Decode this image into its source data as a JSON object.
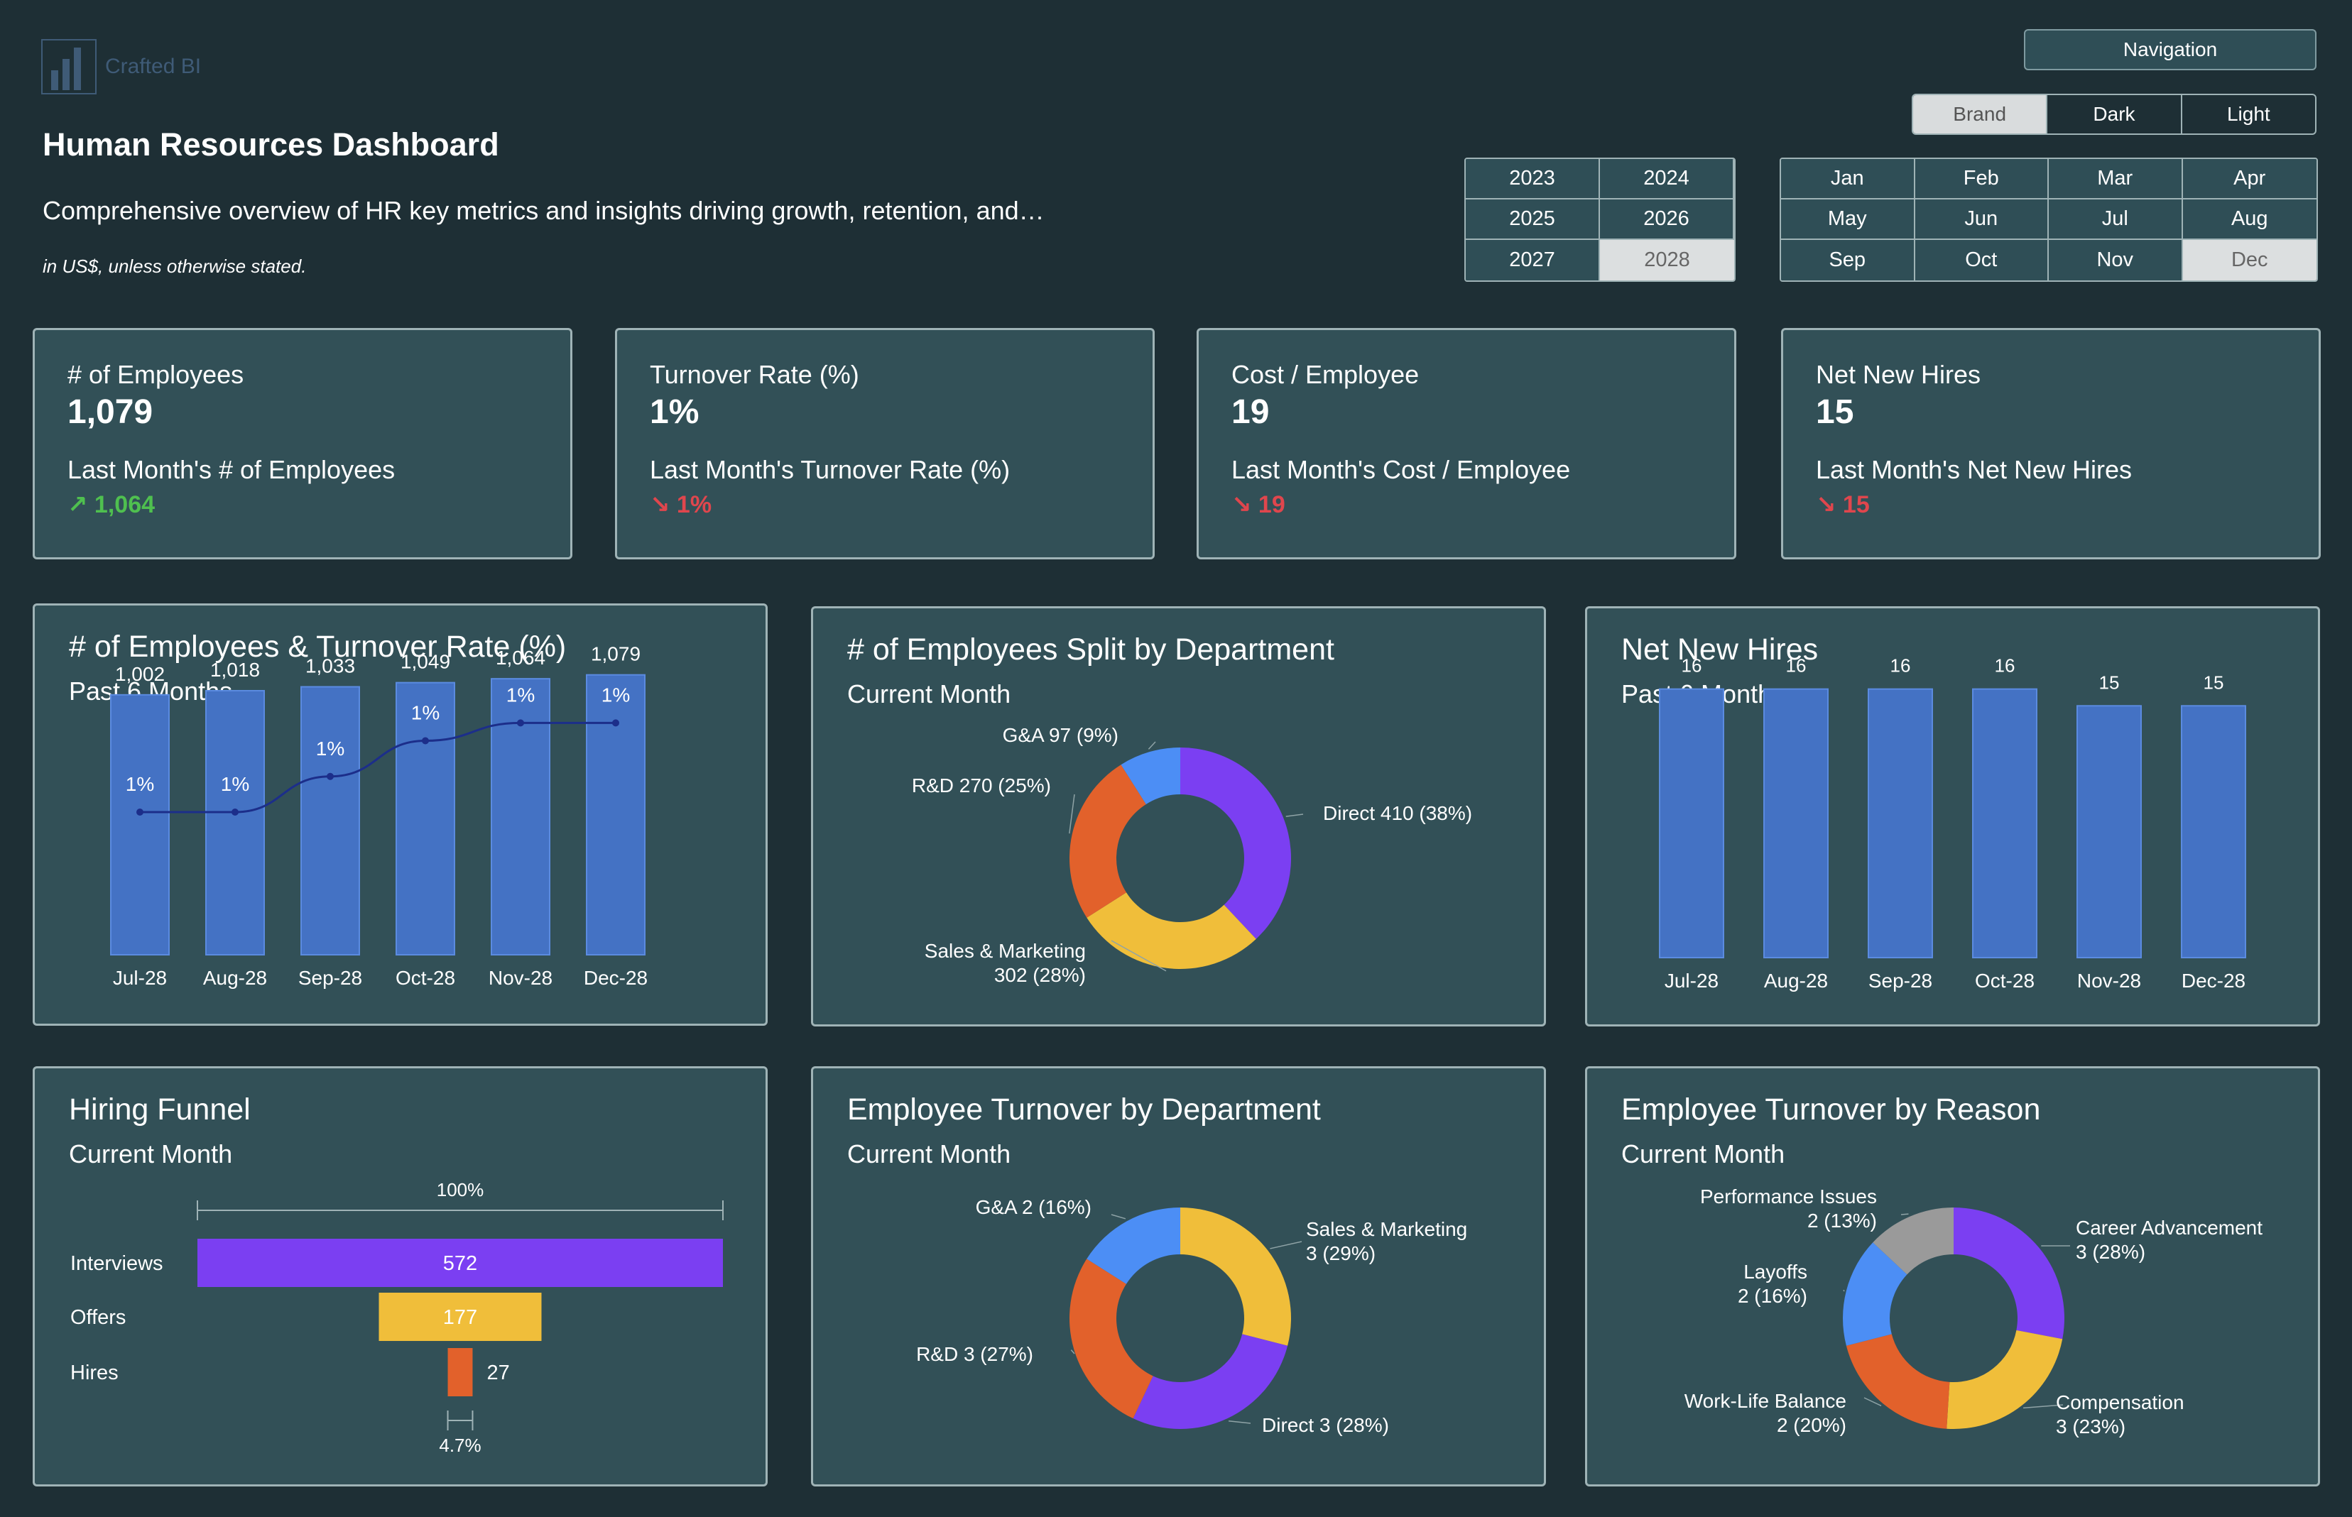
{
  "header": {
    "logo_text": "Crafted BI",
    "title": "Human Resources Dashboard",
    "subtitle": "Comprehensive overview of HR key metrics and insights driving growth, retention, and…",
    "note": "in US$, unless otherwise stated."
  },
  "nav": {
    "navigation_label": "Navigation"
  },
  "theme": {
    "options": [
      "Brand",
      "Dark",
      "Light"
    ],
    "selected": "Brand"
  },
  "years": {
    "options": [
      "2023",
      "2024",
      "2025",
      "2026",
      "2027",
      "2028"
    ],
    "selected": "2028"
  },
  "months": {
    "options": [
      "Jan",
      "Feb",
      "Mar",
      "Apr",
      "May",
      "Jun",
      "Jul",
      "Aug",
      "Sep",
      "Oct",
      "Nov",
      "Dec"
    ],
    "selected": "Dec"
  },
  "kpis": [
    {
      "label": "# of Employees",
      "value": "1,079",
      "last_label": "Last Month's # of Employees",
      "last_value": "↗ 1,064",
      "trend": "up"
    },
    {
      "label": "Turnover Rate (%)",
      "value": "1%",
      "last_label": "Last Month's Turnover Rate (%)",
      "last_value": "↘ 1%",
      "trend": "down"
    },
    {
      "label": "Cost / Employee",
      "value": "19",
      "last_label": "Last Month's Cost / Employee",
      "last_value": "↘ 19",
      "trend": "down"
    },
    {
      "label": "Net New Hires",
      "value": "15",
      "last_label": "Last Month's Net New Hires",
      "last_value": "↘ 15",
      "trend": "down"
    }
  ],
  "colors": {
    "bar": "#4472c4",
    "line": "#1c2e8a",
    "purple": "#7b3ff2",
    "yellow": "#f0be3a",
    "orange": "#e2612b",
    "blue": "#4c8ef5",
    "grey": "#9a9a9a",
    "up": "#4fc04f",
    "down": "#e0464d"
  },
  "chart_data": [
    {
      "id": "employees_turnover",
      "type": "bar",
      "title": "# of Employees & Turnover Rate (%)",
      "subtitle": "Past 6 Months",
      "categories": [
        "Jul-28",
        "Aug-28",
        "Sep-28",
        "Oct-28",
        "Nov-28",
        "Dec-28"
      ],
      "series": [
        {
          "name": "# of Employees",
          "values": [
            1002,
            1018,
            1033,
            1049,
            1064,
            1079
          ],
          "labels": [
            "1,002",
            "1,018",
            "1,033",
            "1,049",
            "1,064",
            "1,079"
          ]
        },
        {
          "name": "Turnover Rate (%)",
          "type": "line",
          "values": [
            0.8,
            0.8,
            1.0,
            1.2,
            1.3,
            1.3
          ],
          "labels": [
            "1%",
            "1%",
            "1%",
            "1%",
            "1%",
            "1%"
          ]
        }
      ],
      "ylim": [
        0,
        1100
      ],
      "line_ylim": [
        0,
        1.6
      ]
    },
    {
      "id": "employees_by_dept",
      "type": "pie",
      "title": "# of Employees Split by Department",
      "subtitle": "Current Month",
      "slices": [
        {
          "name": "Direct",
          "value": 410,
          "label": "Direct 410 (38%)",
          "color": "#7b3ff2"
        },
        {
          "name": "Sales & Marketing",
          "value": 302,
          "label_lines": [
            "Sales & Marketing",
            "302 (28%)"
          ],
          "color": "#f0be3a"
        },
        {
          "name": "R&D",
          "value": 270,
          "label": "R&D 270 (25%)",
          "color": "#e2612b"
        },
        {
          "name": "G&A",
          "value": 97,
          "label": "G&A 97 (9%)",
          "color": "#4c8ef5"
        }
      ]
    },
    {
      "id": "net_new_hires",
      "type": "bar",
      "title": "Net New Hires",
      "subtitle": "Past 6 Months",
      "categories": [
        "Jul-28",
        "Aug-28",
        "Sep-28",
        "Oct-28",
        "Nov-28",
        "Dec-28"
      ],
      "values": [
        16,
        16,
        16,
        16,
        15,
        15
      ],
      "labels": [
        "16",
        "16",
        "16",
        "16",
        "15",
        "15"
      ],
      "ylim": [
        0,
        17
      ]
    },
    {
      "id": "hiring_funnel",
      "type": "bar",
      "title": "Hiring Funnel",
      "subtitle": "Current Month",
      "categories": [
        "Interviews",
        "Offers",
        "Hires"
      ],
      "values": [
        572,
        177,
        27
      ],
      "labels": [
        "572",
        "177",
        "27"
      ],
      "colors": [
        "#7b3ff2",
        "#f0be3a",
        "#e2612b"
      ],
      "top_label": "100%",
      "bottom_label": "4.7%"
    },
    {
      "id": "turnover_by_dept",
      "type": "pie",
      "title": "Employee Turnover by Department",
      "subtitle": "Current Month",
      "slices": [
        {
          "name": "Sales & Marketing",
          "value": 29,
          "label_lines": [
            "Sales & Marketing",
            "3 (29%)"
          ],
          "color": "#f0be3a"
        },
        {
          "name": "Direct",
          "value": 28,
          "label": "Direct 3 (28%)",
          "color": "#7b3ff2"
        },
        {
          "name": "R&D",
          "value": 27,
          "label": "R&D 3 (27%)",
          "color": "#e2612b"
        },
        {
          "name": "G&A",
          "value": 16,
          "label": "G&A 2 (16%)",
          "color": "#4c8ef5"
        }
      ]
    },
    {
      "id": "turnover_by_reason",
      "type": "pie",
      "title": "Employee Turnover by Reason",
      "subtitle": "Current Month",
      "slices": [
        {
          "name": "Career Advancement",
          "value": 28,
          "label_lines": [
            "Career Advancement",
            "3 (28%)"
          ],
          "color": "#7b3ff2"
        },
        {
          "name": "Compensation",
          "value": 23,
          "label_lines": [
            "Compensation",
            "3 (23%)"
          ],
          "color": "#f0be3a"
        },
        {
          "name": "Work-Life Balance",
          "value": 20,
          "label_lines": [
            "Work-Life Balance",
            "2 (20%)"
          ],
          "color": "#e2612b"
        },
        {
          "name": "Layoffs",
          "value": 16,
          "label_lines": [
            "Layoffs",
            "2 (16%)"
          ],
          "color": "#4c8ef5"
        },
        {
          "name": "Performance Issues",
          "value": 13,
          "label_lines": [
            "Performance Issues",
            "2 (13%)"
          ],
          "color": "#9a9a9a"
        }
      ]
    }
  ]
}
